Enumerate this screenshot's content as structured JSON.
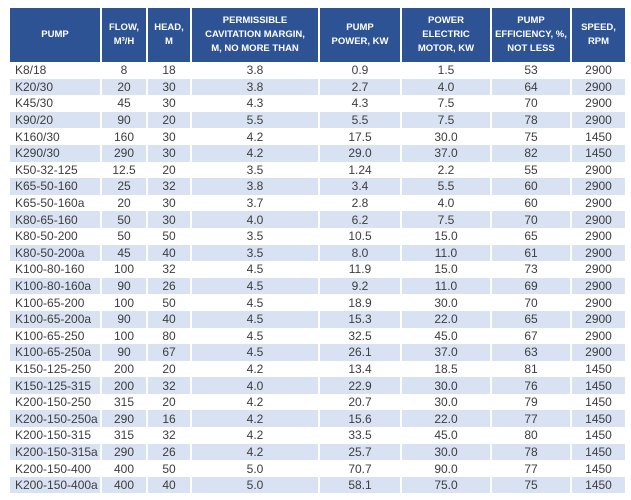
{
  "colors": {
    "header_bg": "#2e5395",
    "header_text": "#ffffff",
    "stripe_bg": "#d9e2f3",
    "body_text": "#3d3d3d"
  },
  "table": {
    "columns": [
      {
        "key": "pump",
        "label": "PUMP"
      },
      {
        "key": "flow",
        "label": "FLOW,\nM³/H"
      },
      {
        "key": "head",
        "label": "HEAD,\nM"
      },
      {
        "key": "cavitation",
        "label": "PERMISSIBLE\nCAVITATION MARGIN,\nM, NO MORE THAN"
      },
      {
        "key": "pump_power",
        "label": "PUMP\nPOWER, KW"
      },
      {
        "key": "motor_power",
        "label": "POWER\nELECTRIC\nMOTOR, KW"
      },
      {
        "key": "efficiency",
        "label": "PUMP\nEFFICIENCY, %,\nNOT LESS"
      },
      {
        "key": "speed",
        "label": "SPEED,\nRPM"
      }
    ],
    "rows": [
      [
        "K8/18",
        "8",
        "18",
        "3.8",
        "0.9",
        "1.5",
        "53",
        "2900"
      ],
      [
        "K20/30",
        "20",
        "30",
        "3.8",
        "2.7",
        "4.0",
        "64",
        "2900"
      ],
      [
        "K45/30",
        "45",
        "30",
        "4.3",
        "4.3",
        "7.5",
        "70",
        "2900"
      ],
      [
        "K90/20",
        "90",
        "20",
        "5.5",
        "5.5",
        "7.5",
        "78",
        "2900"
      ],
      [
        "K160/30",
        "160",
        "30",
        "4.2",
        "17.5",
        "30.0",
        "75",
        "1450"
      ],
      [
        "K290/30",
        "290",
        "30",
        "4.2",
        "29.0",
        "37.0",
        "82",
        "1450"
      ],
      [
        "K50-32-125",
        "12.5",
        "20",
        "3.5",
        "1.24",
        "2.2",
        "55",
        "2900"
      ],
      [
        "K65-50-160",
        "25",
        "32",
        "3.8",
        "3.4",
        "5.5",
        "60",
        "2900"
      ],
      [
        "K65-50-160a",
        "20",
        "30",
        "3.7",
        "2.8",
        "4.0",
        "60",
        "2900"
      ],
      [
        "K80-65-160",
        "50",
        "30",
        "4.0",
        "6.2",
        "7.5",
        "70",
        "2900"
      ],
      [
        "K80-50-200",
        "50",
        "50",
        "3.5",
        "10.5",
        "15.0",
        "65",
        "2900"
      ],
      [
        "K80-50-200a",
        "45",
        "40",
        "3.5",
        "8.0",
        "11.0",
        "61",
        "2900"
      ],
      [
        "K100-80-160",
        "100",
        "32",
        "4.5",
        "11.9",
        "15.0",
        "73",
        "2900"
      ],
      [
        "K100-80-160a",
        "90",
        "26",
        "4.5",
        "9.2",
        "11.0",
        "69",
        "2900"
      ],
      [
        "K100-65-200",
        "100",
        "50",
        "4.5",
        "18.9",
        "30.0",
        "70",
        "2900"
      ],
      [
        "K100-65-200a",
        "90",
        "40",
        "4.5",
        "15.3",
        "22.0",
        "65",
        "2900"
      ],
      [
        "K100-65-250",
        "100",
        "80",
        "4.5",
        "32.5",
        "45.0",
        "67",
        "2900"
      ],
      [
        "K100-65-250a",
        "90",
        "67",
        "4.5",
        "26.1",
        "37.0",
        "63",
        "2900"
      ],
      [
        "K150-125-250",
        "200",
        "20",
        "4.2",
        "13.4",
        "18.5",
        "81",
        "1450"
      ],
      [
        "K150-125-315",
        "200",
        "32",
        "4.0",
        "22.9",
        "30.0",
        "76",
        "1450"
      ],
      [
        "K200-150-250",
        "315",
        "20",
        "4.2",
        "20.7",
        "30.0",
        "79",
        "1450"
      ],
      [
        "K200-150-250a",
        "290",
        "16",
        "4.2",
        "15.6",
        "22.0",
        "77",
        "1450"
      ],
      [
        "K200-150-315",
        "315",
        "32",
        "4.2",
        "33.5",
        "45.0",
        "80",
        "1450"
      ],
      [
        "K200-150-315a",
        "290",
        "26",
        "4.2",
        "25.7",
        "30.0",
        "78",
        "1450"
      ],
      [
        "K200-150-400",
        "400",
        "50",
        "5.0",
        "70.7",
        "90.0",
        "77",
        "1450"
      ],
      [
        "K200-150-400a",
        "400",
        "40",
        "5.0",
        "58.1",
        "75.0",
        "75",
        "1450"
      ]
    ]
  }
}
